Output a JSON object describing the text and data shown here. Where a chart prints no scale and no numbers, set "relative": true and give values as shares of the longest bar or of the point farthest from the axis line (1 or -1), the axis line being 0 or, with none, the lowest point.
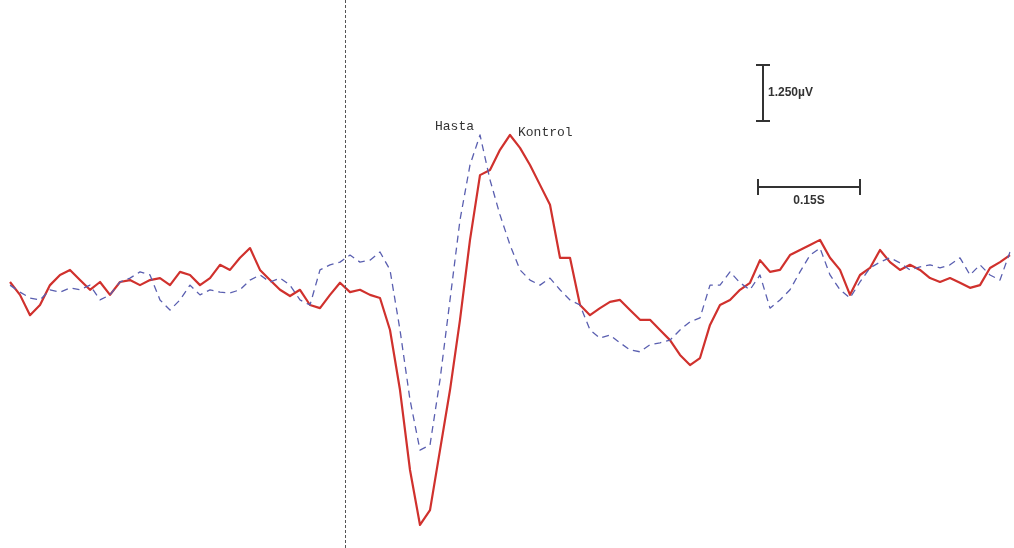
{
  "chart_data": {
    "type": "line",
    "relative": true,
    "legend": false,
    "grid": false,
    "marker": "none",
    "categories": [
      null,
      null,
      null,
      null,
      null,
      null,
      null,
      null,
      null,
      null,
      null,
      null,
      null,
      null,
      null,
      null,
      null,
      null,
      null,
      null,
      null,
      null,
      null,
      null,
      null,
      null,
      null,
      null,
      null,
      null,
      null,
      null,
      null,
      null,
      null,
      null,
      null,
      null,
      null,
      null,
      null,
      null,
      null,
      null,
      null,
      null,
      null,
      null,
      null,
      null,
      null,
      null,
      null,
      null,
      null,
      null,
      null,
      null,
      null,
      null,
      null,
      null,
      null,
      null,
      null,
      null,
      null,
      null,
      null,
      null,
      null,
      null,
      null,
      null,
      null,
      null,
      null,
      null,
      null,
      null,
      null,
      null,
      null,
      null,
      null,
      null,
      null,
      null,
      null,
      null,
      null,
      null,
      null,
      null,
      null,
      null,
      null,
      null,
      null,
      null,
      null
    ],
    "series": [
      {
        "name": "Hasta",
        "color": "#5a5fb0",
        "line_style": "dashed",
        "values": [
          0.615,
          0.597,
          0.582,
          0.577,
          0.603,
          0.597,
          0.608,
          0.603,
          0.615,
          0.577,
          0.59,
          0.623,
          0.633,
          0.649,
          0.641,
          0.577,
          0.551,
          0.577,
          0.615,
          0.59,
          0.603,
          0.597,
          0.595,
          0.603,
          0.628,
          0.641,
          0.623,
          0.633,
          0.615,
          0.577,
          0.564,
          0.654,
          0.667,
          0.674,
          0.692,
          0.674,
          0.679,
          0.7,
          0.654,
          0.5,
          0.321,
          0.192,
          0.205,
          0.372,
          0.577,
          0.782,
          0.923,
          1.0,
          0.885,
          0.795,
          0.718,
          0.654,
          0.628,
          0.615,
          0.633,
          0.603,
          0.577,
          0.564,
          0.5,
          0.479,
          0.487,
          0.467,
          0.449,
          0.444,
          0.462,
          0.467,
          0.474,
          0.5,
          0.521,
          0.531,
          0.615,
          0.615,
          0.649,
          0.621,
          0.603,
          0.641,
          0.556,
          0.577,
          0.603,
          0.649,
          0.692,
          0.71,
          0.641,
          0.603,
          0.582,
          0.623,
          0.659,
          0.674,
          0.685,
          0.672,
          0.654,
          0.662,
          0.667,
          0.659,
          0.667,
          0.685,
          0.641,
          0.667,
          0.641,
          0.628,
          0.7
        ]
      },
      {
        "name": "Kontrol",
        "color": "#d0312d",
        "line_style": "solid",
        "values": [
          0.623,
          0.59,
          0.538,
          0.564,
          0.615,
          0.641,
          0.654,
          0.628,
          0.603,
          0.623,
          0.59,
          0.623,
          0.628,
          0.615,
          0.628,
          0.633,
          0.615,
          0.649,
          0.641,
          0.615,
          0.633,
          0.667,
          0.654,
          0.685,
          0.71,
          0.654,
          0.628,
          0.603,
          0.587,
          0.603,
          0.564,
          0.556,
          0.59,
          0.621,
          0.597,
          0.603,
          0.59,
          0.582,
          0.5,
          0.346,
          0.141,
          0,
          0.038,
          0.192,
          0.346,
          0.526,
          0.731,
          0.897,
          0.91,
          0.962,
          1.0,
          0.967,
          0.923,
          0.872,
          0.821,
          0.685,
          0.685,
          0.564,
          0.538,
          0.556,
          0.572,
          0.577,
          0.551,
          0.526,
          0.526,
          0.5,
          0.474,
          0.436,
          0.41,
          0.428,
          0.513,
          0.564,
          0.577,
          0.603,
          0.621,
          0.679,
          0.649,
          0.654,
          0.692,
          0.705,
          0.718,
          0.731,
          0.685,
          0.654,
          0.59,
          0.641,
          0.659,
          0.705,
          0.674,
          0.654,
          0.667,
          0.654,
          0.633,
          0.623,
          0.633,
          0.621,
          0.608,
          0.615,
          0.659,
          0.674,
          0.692
        ]
      }
    ],
    "annotations": [
      "1.250µV",
      "0.15S"
    ]
  }
}
